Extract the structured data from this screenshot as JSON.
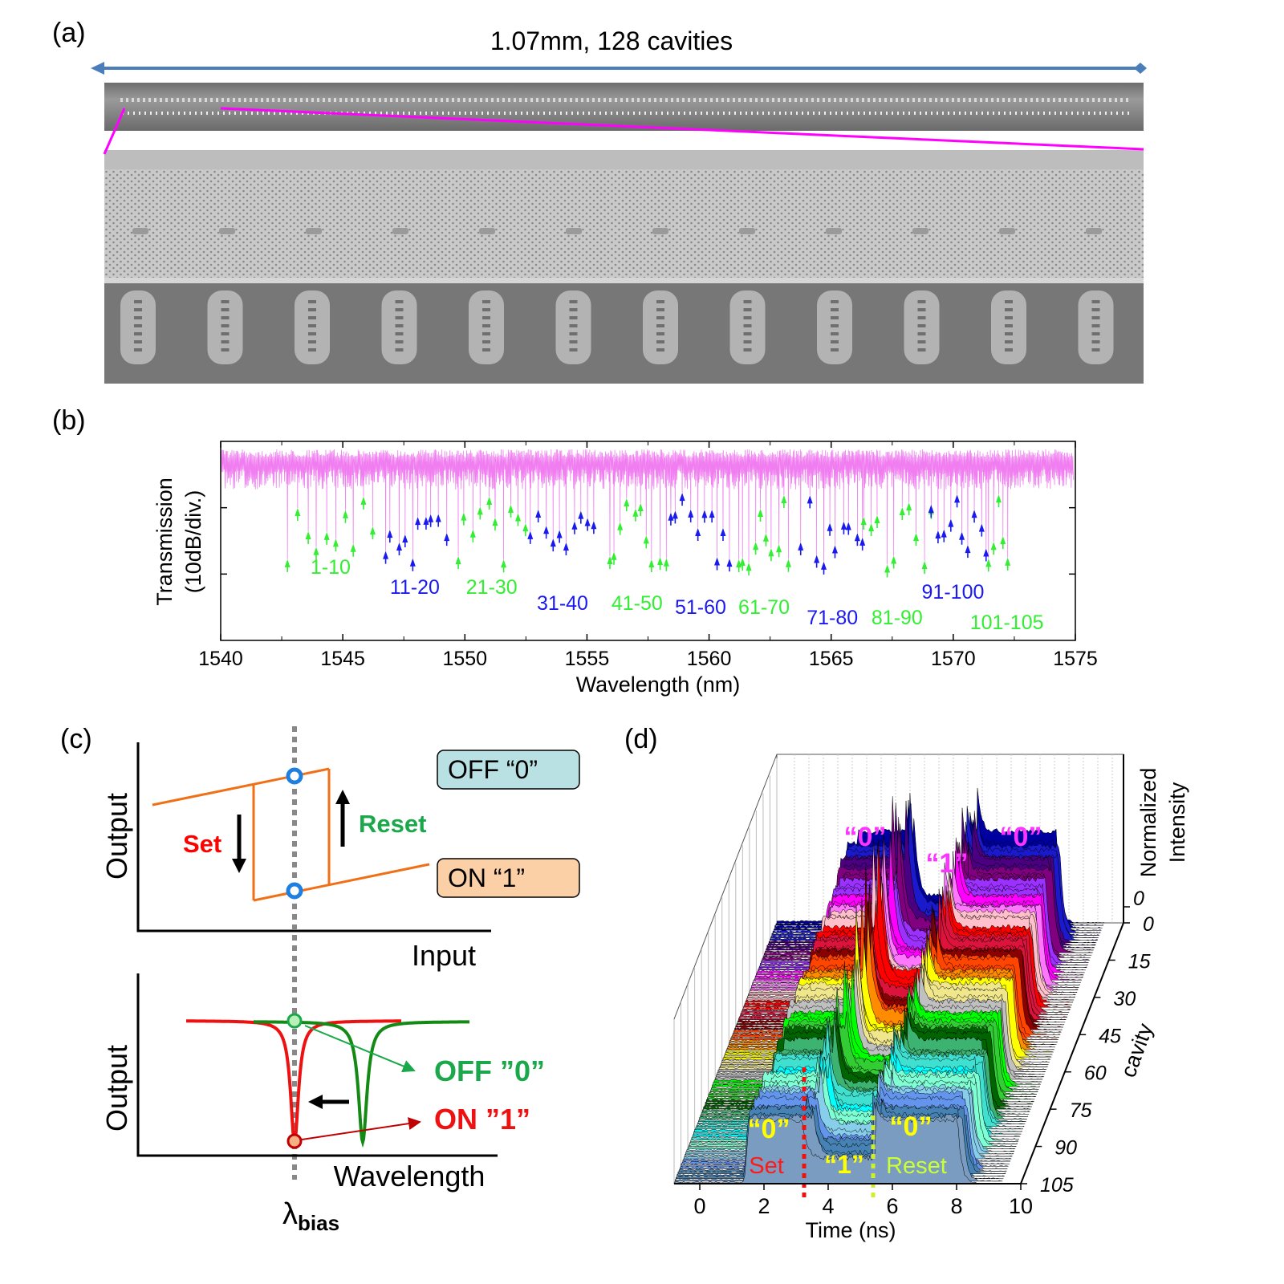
{
  "panel_a": {
    "label": "(a)",
    "title": "1.07mm, 128 cavities",
    "arrow_color": "#4a7ebb",
    "zoom_line_color": "#ff00ff"
  },
  "panel_b": {
    "label": "(b)",
    "chart_data": {
      "type": "line",
      "xlabel": "Wavelength (nm)",
      "ylabel": [
        "Transmission",
        "(10dB/div.)"
      ],
      "xlim": [
        1540,
        1575
      ],
      "x_ticks": [
        "1540",
        "1545",
        "1550",
        "1555",
        "1560",
        "1565",
        "1570",
        "1575"
      ],
      "y_divisions": 3,
      "trace_color": "#f07ef0",
      "groups": [
        {
          "label": "1-10",
          "color": "#33ee33",
          "range_nm": [
            1542.8,
            1546.2
          ]
        },
        {
          "label": "11-20",
          "color": "#1a1aee",
          "range_nm": [
            1546.7,
            1549.2
          ]
        },
        {
          "label": "21-30",
          "color": "#33ee33",
          "range_nm": [
            1549.7,
            1552.5
          ]
        },
        {
          "label": "31-40",
          "color": "#1a1aee",
          "range_nm": [
            1552.7,
            1555.3
          ]
        },
        {
          "label": "41-50",
          "color": "#33ee33",
          "range_nm": [
            1555.9,
            1558.2
          ]
        },
        {
          "label": "51-60",
          "color": "#1a1aee",
          "range_nm": [
            1558.4,
            1560.9
          ]
        },
        {
          "label": "61-70",
          "color": "#33ee33",
          "range_nm": [
            1561.2,
            1563.3
          ]
        },
        {
          "label": "71-80",
          "color": "#1a1aee",
          "range_nm": [
            1563.8,
            1566.3
          ]
        },
        {
          "label": "81-90",
          "color": "#33ee33",
          "range_nm": [
            1566.3,
            1569.1
          ]
        },
        {
          "label": "91-100",
          "color": "#1a1aee",
          "range_nm": [
            1569.1,
            1571.4
          ]
        },
        {
          "label": "101-105",
          "color": "#33ee33",
          "range_nm": [
            1571.4,
            1572.2
          ]
        }
      ]
    }
  },
  "panel_c": {
    "label": "(c)",
    "top": {
      "ylabel": "Output",
      "xlabel": "Input",
      "off_box": "OFF “0”",
      "on_box": "ON “1”",
      "set": "Set",
      "reset": "Reset",
      "off_color": "#b9e0e3",
      "on_color": "#fbd0a6"
    },
    "bottom": {
      "ylabel": "Output",
      "xlabel": "Wavelength",
      "off_label": "OFF ”0”",
      "on_label": "ON ”1”",
      "lambda": "λ",
      "lambda_sub": "bias"
    }
  },
  "panel_d": {
    "label": "(d)",
    "chart_data": {
      "type": "area",
      "xlabel": "Time (ns)",
      "x_ticks": [
        "0",
        "2",
        "4",
        "6",
        "8",
        "10"
      ],
      "xlim": [
        0,
        10
      ],
      "ylabel": "cavity",
      "y_ticks": [
        "0",
        "15",
        "30",
        "45",
        "60",
        "75",
        "90",
        "105"
      ],
      "zlabel": [
        "Normalized",
        "Intensity"
      ],
      "z_ticks": [
        "0"
      ],
      "back_labels": {
        "zero_left": "“0”",
        "one": "“1”",
        "zero_right": "“0”"
      },
      "front_labels": {
        "zero_left": "“0”",
        "set": "Set",
        "one": "“1”",
        "reset": "Reset",
        "zero_right": "“0”"
      },
      "set_time_ns": 3.3,
      "reset_time_ns": 5.4
    }
  }
}
